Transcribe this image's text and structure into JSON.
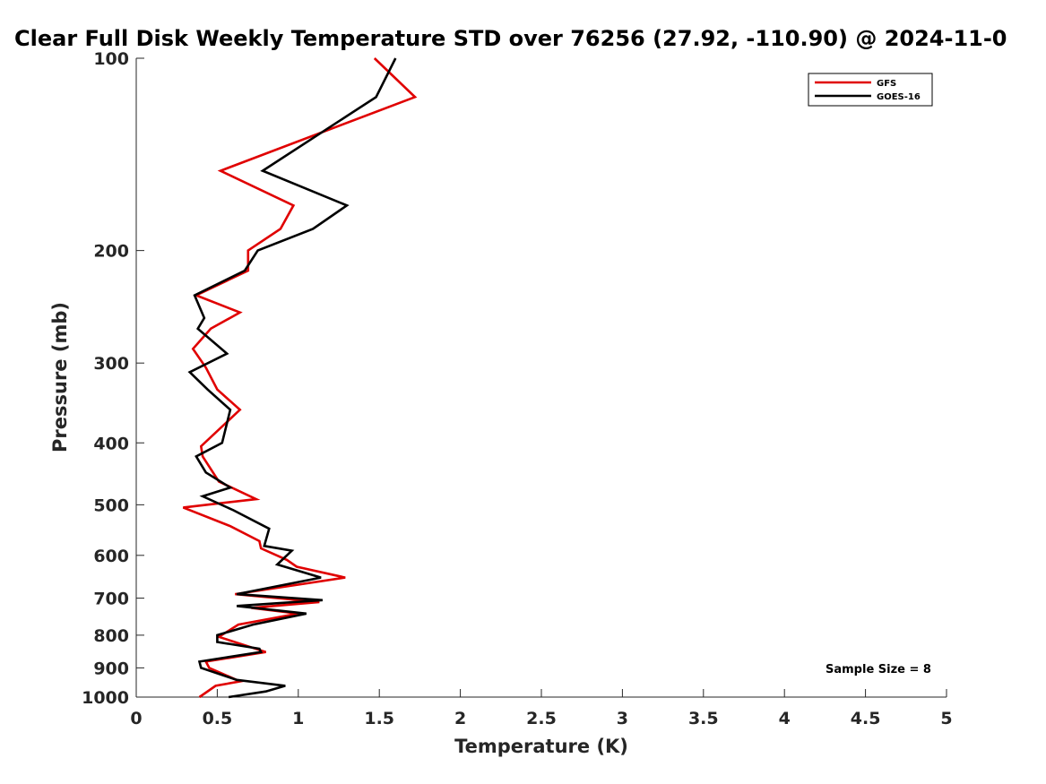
{
  "chart_data": {
    "type": "line",
    "title": "Clear Full Disk Weekly Temperature STD over 76256 (27.92, -110.90) @ 2024-11-0",
    "xlabel": "Temperature (K)",
    "ylabel": "Pressure (mb)",
    "xlim": [
      0,
      5
    ],
    "ylim": [
      100,
      1000
    ],
    "y_scale": "log",
    "y_reversed": true,
    "x_ticks": [
      "0",
      "0.5",
      "1",
      "1.5",
      "2",
      "2.5",
      "3",
      "3.5",
      "4",
      "4.5",
      "5"
    ],
    "y_ticks": [
      "100",
      "200",
      "300",
      "400",
      "500",
      "600",
      "700",
      "800",
      "900",
      "1000"
    ],
    "legend_position": "top-right",
    "annotation": "Sample Size = 8",
    "colors": {
      "GFS": "#e00000",
      "GOES-16": "#000000"
    },
    "series": [
      {
        "name": "GFS",
        "x": [
          1.47,
          1.72,
          0.52,
          0.97,
          0.89,
          0.69,
          0.69,
          0.37,
          0.64,
          0.46,
          0.35,
          0.43,
          0.5,
          0.64,
          0.4,
          0.41,
          0.51,
          0.74,
          0.29,
          0.58,
          0.76,
          0.77,
          0.93,
          0.99,
          1.29,
          0.61,
          1.13,
          0.71,
          1.0,
          0.63,
          0.51,
          0.8,
          0.43,
          0.45,
          0.64,
          0.49,
          0.39
        ],
        "y": [
          100,
          115,
          150,
          170,
          185,
          200,
          215,
          235,
          250,
          265,
          285,
          305,
          330,
          355,
          405,
          420,
          460,
          490,
          505,
          540,
          570,
          585,
          610,
          625,
          650,
          690,
          710,
          725,
          740,
          770,
          805,
          850,
          880,
          900,
          945,
          960,
          1000
        ]
      },
      {
        "name": "GOES-16",
        "x": [
          1.6,
          1.48,
          0.78,
          1.3,
          1.09,
          0.75,
          0.67,
          0.36,
          0.42,
          0.38,
          0.56,
          0.33,
          0.44,
          0.58,
          0.53,
          0.37,
          0.43,
          0.58,
          0.41,
          0.6,
          0.82,
          0.79,
          0.96,
          0.87,
          1.14,
          0.62,
          1.15,
          0.62,
          1.05,
          0.72,
          0.5,
          0.5,
          0.76,
          0.77,
          0.39,
          0.4,
          0.62,
          0.92,
          0.8,
          0.57
        ],
        "y": [
          100,
          115,
          150,
          170,
          185,
          200,
          215,
          235,
          255,
          265,
          290,
          310,
          330,
          355,
          400,
          420,
          445,
          470,
          485,
          510,
          545,
          580,
          590,
          620,
          650,
          690,
          705,
          720,
          740,
          770,
          800,
          820,
          840,
          850,
          880,
          900,
          940,
          960,
          980,
          1000
        ]
      }
    ]
  }
}
